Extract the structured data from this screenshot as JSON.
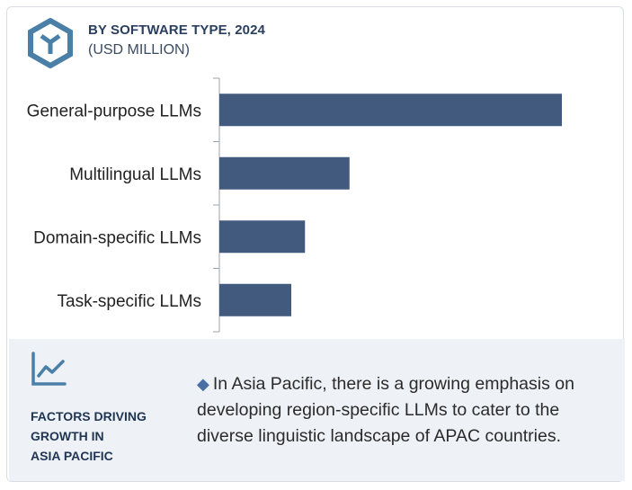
{
  "header": {
    "title": "BY SOFTWARE TYPE, 2024",
    "subtitle": "(USD MILLION)"
  },
  "colors": {
    "bar": "#425a7d",
    "accent": "#4a7fa8"
  },
  "chart_data": {
    "type": "bar",
    "orientation": "horizontal",
    "title": "BY SOFTWARE TYPE, 2024",
    "subtitle": "(USD MILLION)",
    "categories": [
      "General-purpose LLMs",
      "Multilingual LLMs",
      "Domain-specific LLMs",
      "Task-specific LLMs"
    ],
    "values": [
      100,
      38,
      25,
      21
    ],
    "xlim": [
      0,
      100
    ],
    "grid": false,
    "legend": "none"
  },
  "panel": {
    "heading_lines": [
      "FACTORS DRIVING",
      "GROWTH IN",
      "ASIA PACIFIC"
    ],
    "bullet_text": "In Asia Pacific, there is a growing emphasis on developing region-specific LLMs to cater to the diverse linguistic landscape of APAC countries."
  }
}
